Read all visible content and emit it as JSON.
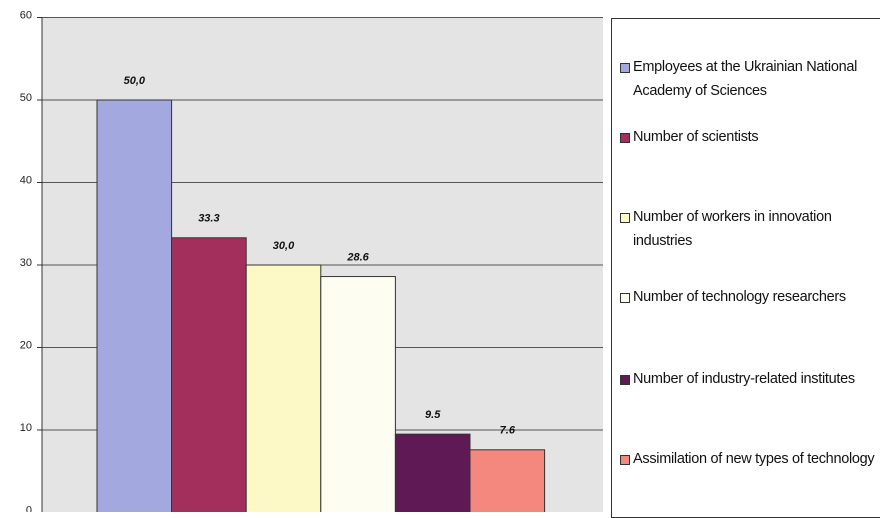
{
  "chart_data": {
    "type": "bar",
    "categories": [
      null
    ],
    "series": [
      {
        "name": "Employees at the Ukrainian National Academy of Sciences",
        "color": "#a3a9de",
        "values": [
          50.0
        ],
        "value_labels": [
          "50,0"
        ]
      },
      {
        "name": "Number of scientists",
        "color": "#a3305c",
        "values": [
          33.3
        ],
        "value_labels": [
          "33.3"
        ]
      },
      {
        "name": "Number of workers in innovation industries",
        "color": "#fdf9c6",
        "values": [
          30.0
        ],
        "value_labels": [
          "30,0"
        ]
      },
      {
        "name": "Number of technology researchers",
        "color": "#fefdf1",
        "values": [
          28.6
        ],
        "value_labels": [
          "28.6"
        ]
      },
      {
        "name": "Number of industry-related institutes",
        "color": "#5f1a56",
        "values": [
          9.5
        ],
        "value_labels": [
          "9.5"
        ]
      },
      {
        "name": "Assimilation of new types of technology",
        "color": "#f4877e",
        "values": [
          7.6
        ],
        "value_labels": [
          "7.6"
        ]
      }
    ],
    "ylim": [
      0,
      60
    ],
    "yticks": [
      0,
      10,
      20,
      30,
      40,
      50,
      60
    ],
    "grid": true,
    "legend": "right"
  }
}
